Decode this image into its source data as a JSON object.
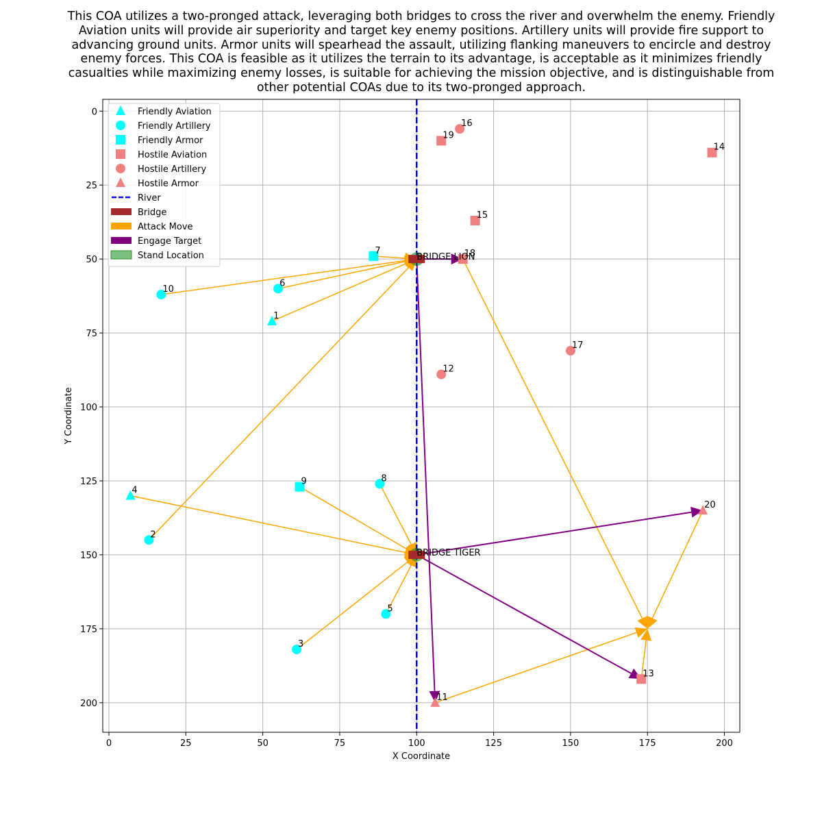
{
  "title": "This COA utilizes a two-pronged attack, leveraging both bridges to cross the river and overwhelm the enemy. Friendly Aviation units will provide air superiority and target key enemy positions. Artillery units will provide fire support to advancing ground units. Armor units will spearhead the assault, utilizing flanking maneuvers to encircle and destroy enemy forces. This COA is feasible as it utilizes the terrain to its advantage, is acceptable as it minimizes friendly casualties while maximizing enemy losses, is suitable for achieving the mission objective, and is distinguishable from other potential COAs due to its two-pronged approach.",
  "colors": {
    "friendly": "#00ffff",
    "hostile": "#f08080",
    "river": "#0000ff",
    "bridge": "#a52a2a",
    "attack": "#ffa500",
    "engage": "#800080",
    "stand": "#008000"
  },
  "chart_data": {
    "type": "scatter",
    "xlabel": "X Coordinate",
    "ylabel": "Y Coordinate",
    "xlim": [
      -2,
      205
    ],
    "ylim": [
      210,
      -4
    ],
    "y_inverted": true,
    "grid": true,
    "legend_position": "top-left",
    "x_ticks": [
      "0",
      "25",
      "50",
      "75",
      "100",
      "125",
      "150",
      "175",
      "200"
    ],
    "y_ticks": [
      "0",
      "25",
      "50",
      "75",
      "100",
      "125",
      "150",
      "175",
      "200"
    ],
    "legend": [
      {
        "label": "Friendly Aviation",
        "kind": "triangle",
        "color": "#00ffff"
      },
      {
        "label": "Friendly Artillery",
        "kind": "circle",
        "color": "#00ffff"
      },
      {
        "label": "Friendly Armor",
        "kind": "square",
        "color": "#00ffff"
      },
      {
        "label": "Hostile Aviation",
        "kind": "square",
        "color": "#f08080"
      },
      {
        "label": "Hostile Artillery",
        "kind": "circle",
        "color": "#f08080"
      },
      {
        "label": "Hostile Armor",
        "kind": "triangle",
        "color": "#f08080"
      },
      {
        "label": "River",
        "kind": "dashed",
        "color": "#0000ff"
      },
      {
        "label": "Bridge",
        "kind": "patch",
        "color": "#a52a2a"
      },
      {
        "label": "Attack Move",
        "kind": "patch",
        "color": "#ffa500"
      },
      {
        "label": "Engage Target",
        "kind": "patch",
        "color": "#800080"
      },
      {
        "label": "Stand Location",
        "kind": "stand",
        "color": "#008000"
      }
    ],
    "river": {
      "x": 100,
      "y_range": [
        -4,
        210
      ]
    },
    "bridges": [
      {
        "name": "BRIDGE LION",
        "x": 100,
        "y": 50
      },
      {
        "name": "BRIDGE TIGER",
        "x": 100,
        "y": 150
      }
    ],
    "units": [
      {
        "id": "1",
        "side": "friendly",
        "type": "aviation",
        "x": 53,
        "y": 71
      },
      {
        "id": "2",
        "side": "friendly",
        "type": "artillery",
        "x": 13,
        "y": 145
      },
      {
        "id": "3",
        "side": "friendly",
        "type": "artillery",
        "x": 61,
        "y": 182
      },
      {
        "id": "4",
        "side": "friendly",
        "type": "aviation",
        "x": 7,
        "y": 130
      },
      {
        "id": "5",
        "side": "friendly",
        "type": "artillery",
        "x": 90,
        "y": 170
      },
      {
        "id": "6",
        "side": "friendly",
        "type": "artillery",
        "x": 55,
        "y": 60
      },
      {
        "id": "7",
        "side": "friendly",
        "type": "armor",
        "x": 86,
        "y": 49
      },
      {
        "id": "8",
        "side": "friendly",
        "type": "artillery",
        "x": 88,
        "y": 126
      },
      {
        "id": "9",
        "side": "friendly",
        "type": "armor",
        "x": 62,
        "y": 127
      },
      {
        "id": "10",
        "side": "friendly",
        "type": "artillery",
        "x": 17,
        "y": 62
      },
      {
        "id": "11",
        "side": "hostile",
        "type": "armor",
        "x": 106,
        "y": 200
      },
      {
        "id": "12",
        "side": "hostile",
        "type": "artillery",
        "x": 108,
        "y": 89
      },
      {
        "id": "13",
        "side": "hostile",
        "type": "aviation",
        "x": 173,
        "y": 192
      },
      {
        "id": "14",
        "side": "hostile",
        "type": "aviation",
        "x": 196,
        "y": 14
      },
      {
        "id": "15",
        "side": "hostile",
        "type": "aviation",
        "x": 119,
        "y": 37
      },
      {
        "id": "16",
        "side": "hostile",
        "type": "artillery",
        "x": 114,
        "y": 6
      },
      {
        "id": "17",
        "side": "hostile",
        "type": "artillery",
        "x": 150,
        "y": 81
      },
      {
        "id": "18",
        "side": "hostile",
        "type": "aviation",
        "x": 115,
        "y": 50
      },
      {
        "id": "19",
        "side": "hostile",
        "type": "aviation",
        "x": 108,
        "y": 10
      },
      {
        "id": "20",
        "side": "hostile",
        "type": "armor",
        "x": 193,
        "y": 135
      }
    ],
    "attack_moves": [
      {
        "from": [
          86,
          49
        ],
        "to": [
          100,
          50
        ]
      },
      {
        "from": [
          17,
          62
        ],
        "to": [
          100,
          50
        ]
      },
      {
        "from": [
          55,
          60
        ],
        "to": [
          100,
          50
        ]
      },
      {
        "from": [
          53,
          71
        ],
        "to": [
          100,
          50
        ]
      },
      {
        "from": [
          13,
          145
        ],
        "to": [
          100,
          50
        ]
      },
      {
        "from": [
          7,
          130
        ],
        "to": [
          100,
          150
        ]
      },
      {
        "from": [
          62,
          127
        ],
        "to": [
          100,
          150
        ]
      },
      {
        "from": [
          88,
          126
        ],
        "to": [
          100,
          150
        ]
      },
      {
        "from": [
          61,
          182
        ],
        "to": [
          100,
          150
        ]
      },
      {
        "from": [
          90,
          170
        ],
        "to": [
          100,
          150
        ]
      },
      {
        "from": [
          115,
          50
        ],
        "to": [
          175,
          175
        ]
      },
      {
        "from": [
          193,
          135
        ],
        "to": [
          175,
          175
        ]
      },
      {
        "from": [
          106,
          200
        ],
        "to": [
          175,
          175
        ]
      },
      {
        "from": [
          173,
          192
        ],
        "to": [
          175,
          175
        ]
      }
    ],
    "engage_targets": [
      {
        "from": [
          100,
          50
        ],
        "to": [
          115,
          50
        ]
      },
      {
        "from": [
          100,
          50
        ],
        "to": [
          106,
          200
        ]
      },
      {
        "from": [
          100,
          150
        ],
        "to": [
          193,
          135
        ]
      },
      {
        "from": [
          100,
          150
        ],
        "to": [
          173,
          192
        ]
      }
    ],
    "stand_locations": [
      {
        "x": 100,
        "y": 50
      },
      {
        "x": 100,
        "y": 150
      }
    ]
  }
}
